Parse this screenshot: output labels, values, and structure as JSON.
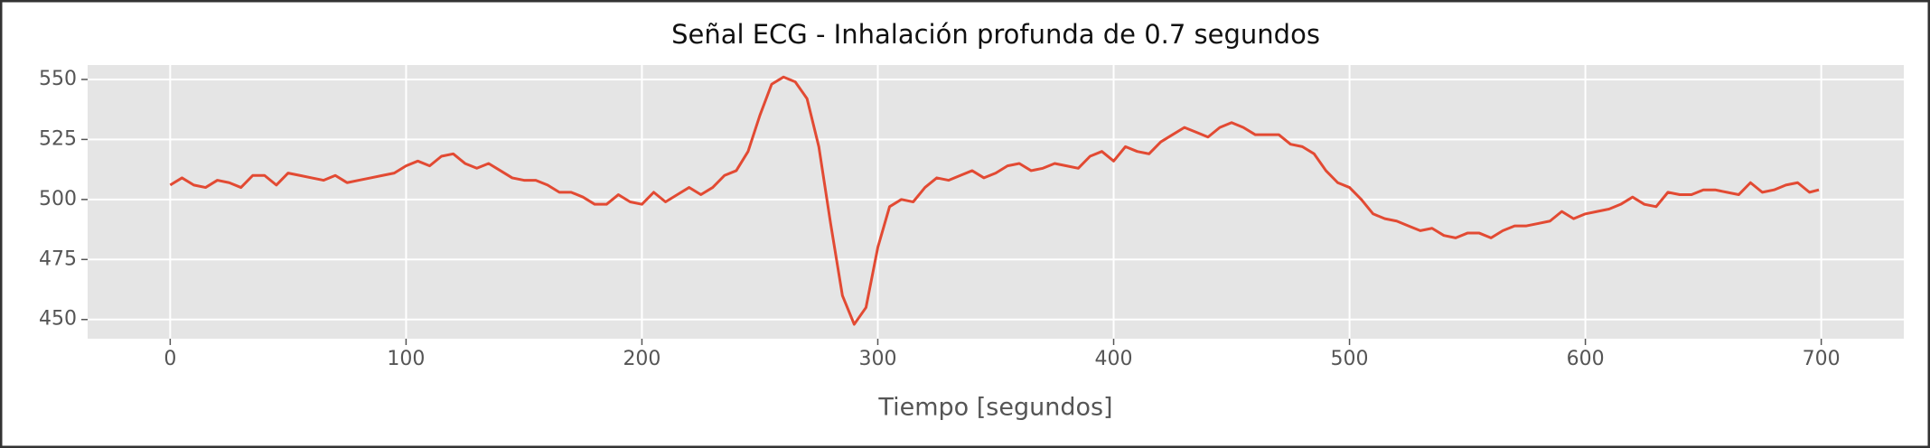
{
  "chart_data": {
    "type": "line",
    "title": "Señal ECG - Inhalación profunda de 0.7 segundos",
    "xlabel": "Tiempo [segundos]",
    "color": "#E24A33",
    "grid": true,
    "xlim": [
      -35,
      735
    ],
    "xticks": [
      0,
      100,
      200,
      300,
      400,
      500,
      600,
      700
    ],
    "ylim": [
      442,
      556
    ],
    "yticks": [
      450,
      475,
      500,
      525,
      550
    ],
    "x": [
      0,
      5,
      10,
      15,
      20,
      25,
      30,
      35,
      40,
      45,
      50,
      55,
      60,
      65,
      70,
      75,
      80,
      85,
      90,
      95,
      100,
      105,
      110,
      115,
      120,
      125,
      130,
      135,
      140,
      145,
      150,
      155,
      160,
      165,
      170,
      175,
      180,
      185,
      190,
      195,
      200,
      205,
      210,
      215,
      220,
      225,
      230,
      235,
      240,
      245,
      250,
      255,
      260,
      265,
      270,
      275,
      280,
      285,
      290,
      295,
      300,
      305,
      310,
      315,
      320,
      325,
      330,
      335,
      340,
      345,
      350,
      355,
      360,
      365,
      370,
      375,
      380,
      385,
      390,
      395,
      400,
      405,
      410,
      415,
      420,
      425,
      430,
      435,
      440,
      445,
      450,
      455,
      460,
      465,
      470,
      475,
      480,
      485,
      490,
      495,
      500,
      505,
      510,
      515,
      520,
      525,
      530,
      535,
      540,
      545,
      550,
      555,
      560,
      565,
      570,
      575,
      580,
      585,
      590,
      595,
      600,
      605,
      610,
      615,
      620,
      625,
      630,
      635,
      640,
      645,
      650,
      655,
      660,
      665,
      670,
      675,
      680,
      685,
      690,
      695,
      699
    ],
    "values": [
      506,
      509,
      506,
      505,
      508,
      507,
      505,
      510,
      510,
      506,
      511,
      510,
      509,
      508,
      510,
      507,
      508,
      509,
      510,
      511,
      514,
      516,
      514,
      518,
      519,
      515,
      513,
      515,
      512,
      509,
      508,
      508,
      506,
      503,
      503,
      501,
      498,
      498,
      502,
      499,
      498,
      503,
      499,
      502,
      505,
      502,
      505,
      510,
      512,
      520,
      535,
      548,
      551,
      549,
      542,
      522,
      490,
      460,
      448,
      455,
      480,
      497,
      500,
      499,
      505,
      509,
      508,
      510,
      512,
      509,
      511,
      514,
      515,
      512,
      513,
      515,
      514,
      513,
      518,
      520,
      516,
      522,
      520,
      519,
      524,
      527,
      530,
      528,
      526,
      530,
      532,
      530,
      527,
      527,
      527,
      523,
      522,
      519,
      512,
      507,
      505,
      500,
      494,
      492,
      491,
      489,
      487,
      488,
      485,
      484,
      486,
      486,
      484,
      487,
      489,
      489,
      490,
      491,
      495,
      492,
      494,
      495,
      496,
      498,
      501,
      498,
      497,
      503,
      502,
      502,
      504,
      504,
      503,
      502,
      507,
      503,
      504,
      506,
      507,
      503,
      504
    ]
  }
}
